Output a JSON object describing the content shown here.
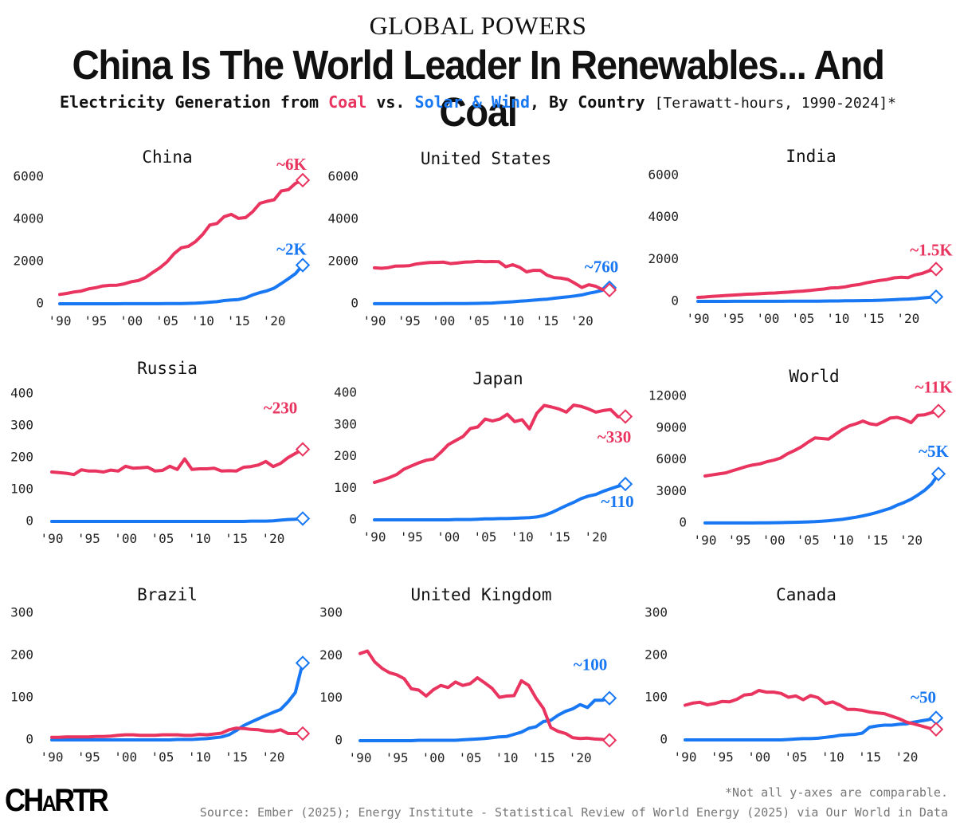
{
  "header": {
    "kicker": "GLOBAL POWERS",
    "title": "China Is The World Leader In Renewables... And Coal",
    "subtitle_part1": "Electricity Generation from ",
    "subtitle_coal": "Coal",
    "subtitle_part2": " vs. ",
    "subtitle_solar": "Solar & Wind",
    "subtitle_part3": ", By Country ",
    "subtitle_units": "[Terawatt-hours, 1990-2024]*"
  },
  "colors": {
    "coal": "#e8345f",
    "solar_wind": "#1877f2",
    "text": "#111111",
    "muted": "#777777"
  },
  "footer": {
    "footnote": "*Not all y-axes are comparable.",
    "source": "Source: Ember (2025); Energy Institute - Statistical Review of World Energy (2025) via Our World in Data",
    "logo_main": "CH",
    "logo_a": "A",
    "logo_rest": "RTR"
  },
  "chart_data": [
    {
      "type": "line",
      "title": "China",
      "x_start": 1990,
      "x_end": 2024,
      "xticks": [
        "'90",
        "'95",
        "'00",
        "'05",
        "'10",
        "'15",
        "'20"
      ],
      "ylim": [
        0,
        6000
      ],
      "yticks": [
        "0",
        "2000",
        "4000",
        "6000"
      ],
      "series": [
        {
          "name": "Coal",
          "label": "~6K",
          "values": [
            440,
            490,
            560,
            600,
            700,
            760,
            840,
            870,
            880,
            940,
            1040,
            1100,
            1240,
            1480,
            1700,
            1980,
            2370,
            2650,
            2720,
            2940,
            3280,
            3730,
            3800,
            4120,
            4230,
            4040,
            4080,
            4360,
            4750,
            4850,
            4920,
            5340,
            5400,
            5700,
            5850
          ]
        },
        {
          "name": "Solar & Wind",
          "label": "~2K",
          "values": [
            0,
            0,
            0,
            0,
            0,
            1,
            1,
            1,
            1,
            2,
            2,
            3,
            4,
            5,
            5,
            6,
            8,
            12,
            17,
            28,
            46,
            74,
            100,
            150,
            180,
            200,
            280,
            420,
            530,
            610,
            740,
            960,
            1190,
            1430,
            1830
          ]
        }
      ]
    },
    {
      "type": "line",
      "title": "United States",
      "x_start": 1990,
      "x_end": 2024,
      "xticks": [
        "'90",
        "'95",
        "'00",
        "'05",
        "'10",
        "'15",
        "'20"
      ],
      "ylim": [
        0,
        6000
      ],
      "yticks": [
        "0",
        "2000",
        "4000",
        "6000"
      ],
      "series": [
        {
          "name": "Coal",
          "label": "",
          "values": [
            1700,
            1680,
            1710,
            1780,
            1790,
            1800,
            1880,
            1920,
            1950,
            1960,
            1970,
            1900,
            1930,
            1970,
            1980,
            2010,
            1990,
            2000,
            1990,
            1750,
            1850,
            1730,
            1510,
            1580,
            1580,
            1350,
            1240,
            1210,
            1150,
            970,
            770,
            900,
            830,
            670,
            650
          ]
        },
        {
          "name": "Solar & Wind",
          "label": "~760",
          "values": [
            3,
            3,
            3,
            3,
            3,
            4,
            4,
            4,
            4,
            5,
            6,
            7,
            10,
            12,
            14,
            18,
            27,
            35,
            55,
            74,
            95,
            120,
            140,
            170,
            200,
            220,
            260,
            300,
            330,
            370,
            420,
            500,
            560,
            640,
            760
          ]
        }
      ]
    },
    {
      "type": "line",
      "title": "India",
      "x_start": 1990,
      "x_end": 2024,
      "xticks": [
        "'90",
        "'95",
        "'00",
        "'05",
        "'10",
        "'15",
        "'20"
      ],
      "ylim": [
        0,
        6000
      ],
      "yticks": [
        "0",
        "2000",
        "4000",
        "6000"
      ],
      "series": [
        {
          "name": "Coal",
          "label": "~1.5K",
          "values": [
            190,
            210,
            240,
            260,
            280,
            300,
            320,
            340,
            350,
            370,
            390,
            400,
            420,
            440,
            470,
            490,
            520,
            560,
            590,
            640,
            650,
            690,
            760,
            800,
            880,
            940,
            1000,
            1040,
            1120,
            1150,
            1130,
            1260,
            1330,
            1460,
            1540
          ]
        },
        {
          "name": "Solar & Wind",
          "label": "",
          "values": [
            1,
            1,
            1,
            1,
            1,
            2,
            2,
            3,
            3,
            4,
            4,
            4,
            5,
            6,
            7,
            7,
            8,
            10,
            14,
            18,
            20,
            25,
            30,
            34,
            38,
            42,
            52,
            64,
            80,
            99,
            110,
            130,
            160,
            190,
            220
          ]
        }
      ]
    },
    {
      "type": "line",
      "title": "Russia",
      "x_start": 1990,
      "x_end": 2024,
      "xticks": [
        "'90",
        "'95",
        "'00",
        "'05",
        "'10",
        "'15",
        "'20"
      ],
      "ylim": [
        0,
        400
      ],
      "yticks": [
        "0",
        "100",
        "200",
        "300",
        "400"
      ],
      "series": [
        {
          "name": "Coal",
          "label": "~230",
          "values": [
            155,
            153,
            151,
            147,
            162,
            158,
            158,
            155,
            161,
            158,
            173,
            167,
            168,
            170,
            158,
            160,
            173,
            163,
            196,
            163,
            165,
            165,
            167,
            158,
            159,
            158,
            170,
            172,
            177,
            188,
            172,
            182,
            200,
            213,
            226
          ]
        },
        {
          "name": "Solar & Wind",
          "label": "",
          "values": [
            0,
            0,
            0,
            0,
            0,
            0,
            0,
            0,
            0,
            0,
            0,
            0,
            0,
            0,
            0,
            0,
            0,
            0,
            0,
            0,
            0,
            0,
            0,
            0,
            0,
            0,
            0,
            1,
            1,
            1,
            2,
            4,
            6,
            7,
            9
          ]
        }
      ]
    },
    {
      "type": "line",
      "title": "Japan",
      "x_start": 1990,
      "x_end": 2024,
      "xticks": [
        "'90",
        "'95",
        "'00",
        "'05",
        "'10",
        "'15",
        "'20"
      ],
      "ylim": [
        0,
        400
      ],
      "yticks": [
        "0",
        "100",
        "200",
        "300",
        "400"
      ],
      "series": [
        {
          "name": "Coal",
          "label": "~330",
          "values": [
            118,
            125,
            133,
            143,
            160,
            170,
            180,
            188,
            192,
            213,
            237,
            250,
            263,
            288,
            293,
            318,
            312,
            318,
            333,
            310,
            316,
            287,
            336,
            361,
            356,
            350,
            340,
            362,
            358,
            350,
            340,
            345,
            348,
            325,
            326
          ]
        },
        {
          "name": "Solar & Wind",
          "label": "~110",
          "values": [
            0,
            0,
            0,
            0,
            0,
            0,
            0,
            0,
            0,
            0,
            0,
            1,
            1,
            1,
            2,
            3,
            3,
            4,
            4,
            5,
            6,
            7,
            9,
            14,
            23,
            34,
            45,
            55,
            67,
            75,
            80,
            90,
            98,
            106,
            113
          ]
        }
      ]
    },
    {
      "type": "line",
      "title": "World",
      "x_start": 1990,
      "x_end": 2024,
      "xticks": [
        "'90",
        "'95",
        "'00",
        "'05",
        "'10",
        "'15",
        "'20"
      ],
      "ylim": [
        0,
        12000
      ],
      "yticks": [
        "0",
        "3000",
        "6000",
        "9000",
        "12000"
      ],
      "series": [
        {
          "name": "Coal",
          "label": "~11K",
          "values": [
            4450,
            4550,
            4650,
            4750,
            4950,
            5150,
            5350,
            5500,
            5600,
            5800,
            5950,
            6150,
            6550,
            6850,
            7200,
            7650,
            8050,
            8000,
            7950,
            8400,
            8850,
            9200,
            9400,
            9650,
            9400,
            9300,
            9600,
            9950,
            10000,
            9800,
            9500,
            10200,
            10250,
            10450,
            10600
          ]
        },
        {
          "name": "Solar & Wind",
          "label": "~5K",
          "values": [
            4,
            4,
            5,
            5,
            6,
            8,
            9,
            11,
            14,
            18,
            32,
            40,
            53,
            66,
            85,
            104,
            130,
            170,
            220,
            280,
            350,
            450,
            550,
            680,
            820,
            1000,
            1200,
            1400,
            1700,
            1950,
            2250,
            2650,
            3100,
            3700,
            4650
          ]
        }
      ]
    },
    {
      "type": "line",
      "title": "Brazil",
      "x_start": 1990,
      "x_end": 2024,
      "xticks": [
        "'90",
        "'95",
        "'00",
        "'05",
        "'10",
        "'15",
        "'20"
      ],
      "ylim": [
        0,
        300
      ],
      "yticks": [
        "0",
        "100",
        "200",
        "300"
      ],
      "series": [
        {
          "name": "Coal",
          "label": "",
          "values": [
            6,
            6,
            7,
            7,
            7,
            7,
            8,
            8,
            9,
            11,
            12,
            12,
            11,
            11,
            11,
            12,
            12,
            12,
            11,
            11,
            13,
            12,
            14,
            16,
            24,
            28,
            27,
            25,
            24,
            21,
            20,
            24,
            15,
            15,
            15
          ]
        },
        {
          "name": "Solar & Wind",
          "label": "",
          "values": [
            0,
            0,
            0,
            0,
            0,
            0,
            0,
            0,
            0,
            0,
            0,
            0,
            0,
            0,
            0,
            0,
            0,
            1,
            1,
            1,
            2,
            3,
            5,
            7,
            12,
            22,
            34,
            42,
            50,
            58,
            65,
            72,
            90,
            112,
            182
          ]
        }
      ]
    },
    {
      "type": "line",
      "title": "United Kingdom",
      "x_start": 1990,
      "x_end": 2024,
      "xticks": [
        "'90",
        "'95",
        "'00",
        "'05",
        "'10",
        "'15",
        "'20"
      ],
      "ylim": [
        0,
        300
      ],
      "yticks": [
        "0",
        "100",
        "200",
        "300"
      ],
      "series": [
        {
          "name": "Coal",
          "label": "",
          "values": [
            205,
            211,
            185,
            170,
            160,
            155,
            146,
            122,
            119,
            105,
            120,
            130,
            125,
            138,
            130,
            134,
            148,
            136,
            123,
            102,
            105,
            106,
            141,
            130,
            100,
            76,
            31,
            22,
            17,
            7,
            5,
            6,
            4,
            3,
            1
          ]
        },
        {
          "name": "Solar & Wind",
          "label": "~100",
          "values": [
            0,
            0,
            0,
            0,
            0,
            0,
            0,
            0,
            1,
            1,
            1,
            1,
            1,
            1,
            2,
            3,
            4,
            5,
            7,
            9,
            10,
            15,
            20,
            29,
            33,
            45,
            48,
            60,
            69,
            75,
            85,
            78,
            95,
            95,
            100
          ]
        }
      ]
    },
    {
      "type": "line",
      "title": "Canada",
      "x_start": 1990,
      "x_end": 2024,
      "xticks": [
        "'90",
        "'95",
        "'00",
        "'05",
        "'10",
        "'15",
        "'20"
      ],
      "ylim": [
        0,
        300
      ],
      "yticks": [
        "0",
        "100",
        "200",
        "300"
      ],
      "series": [
        {
          "name": "Coal",
          "label": "",
          "values": [
            82,
            87,
            89,
            83,
            86,
            91,
            90,
            96,
            106,
            108,
            117,
            113,
            113,
            110,
            101,
            104,
            95,
            105,
            100,
            86,
            90,
            82,
            72,
            72,
            70,
            66,
            64,
            62,
            56,
            50,
            42,
            38,
            33,
            28,
            25
          ]
        },
        {
          "name": "Solar & Wind",
          "label": "~50",
          "values": [
            0,
            0,
            0,
            0,
            0,
            0,
            0,
            0,
            0,
            0,
            0,
            0,
            0,
            0,
            1,
            2,
            3,
            3,
            4,
            6,
            8,
            11,
            12,
            13,
            16,
            30,
            33,
            35,
            35,
            37,
            38,
            42,
            45,
            48,
            52
          ]
        }
      ]
    }
  ]
}
